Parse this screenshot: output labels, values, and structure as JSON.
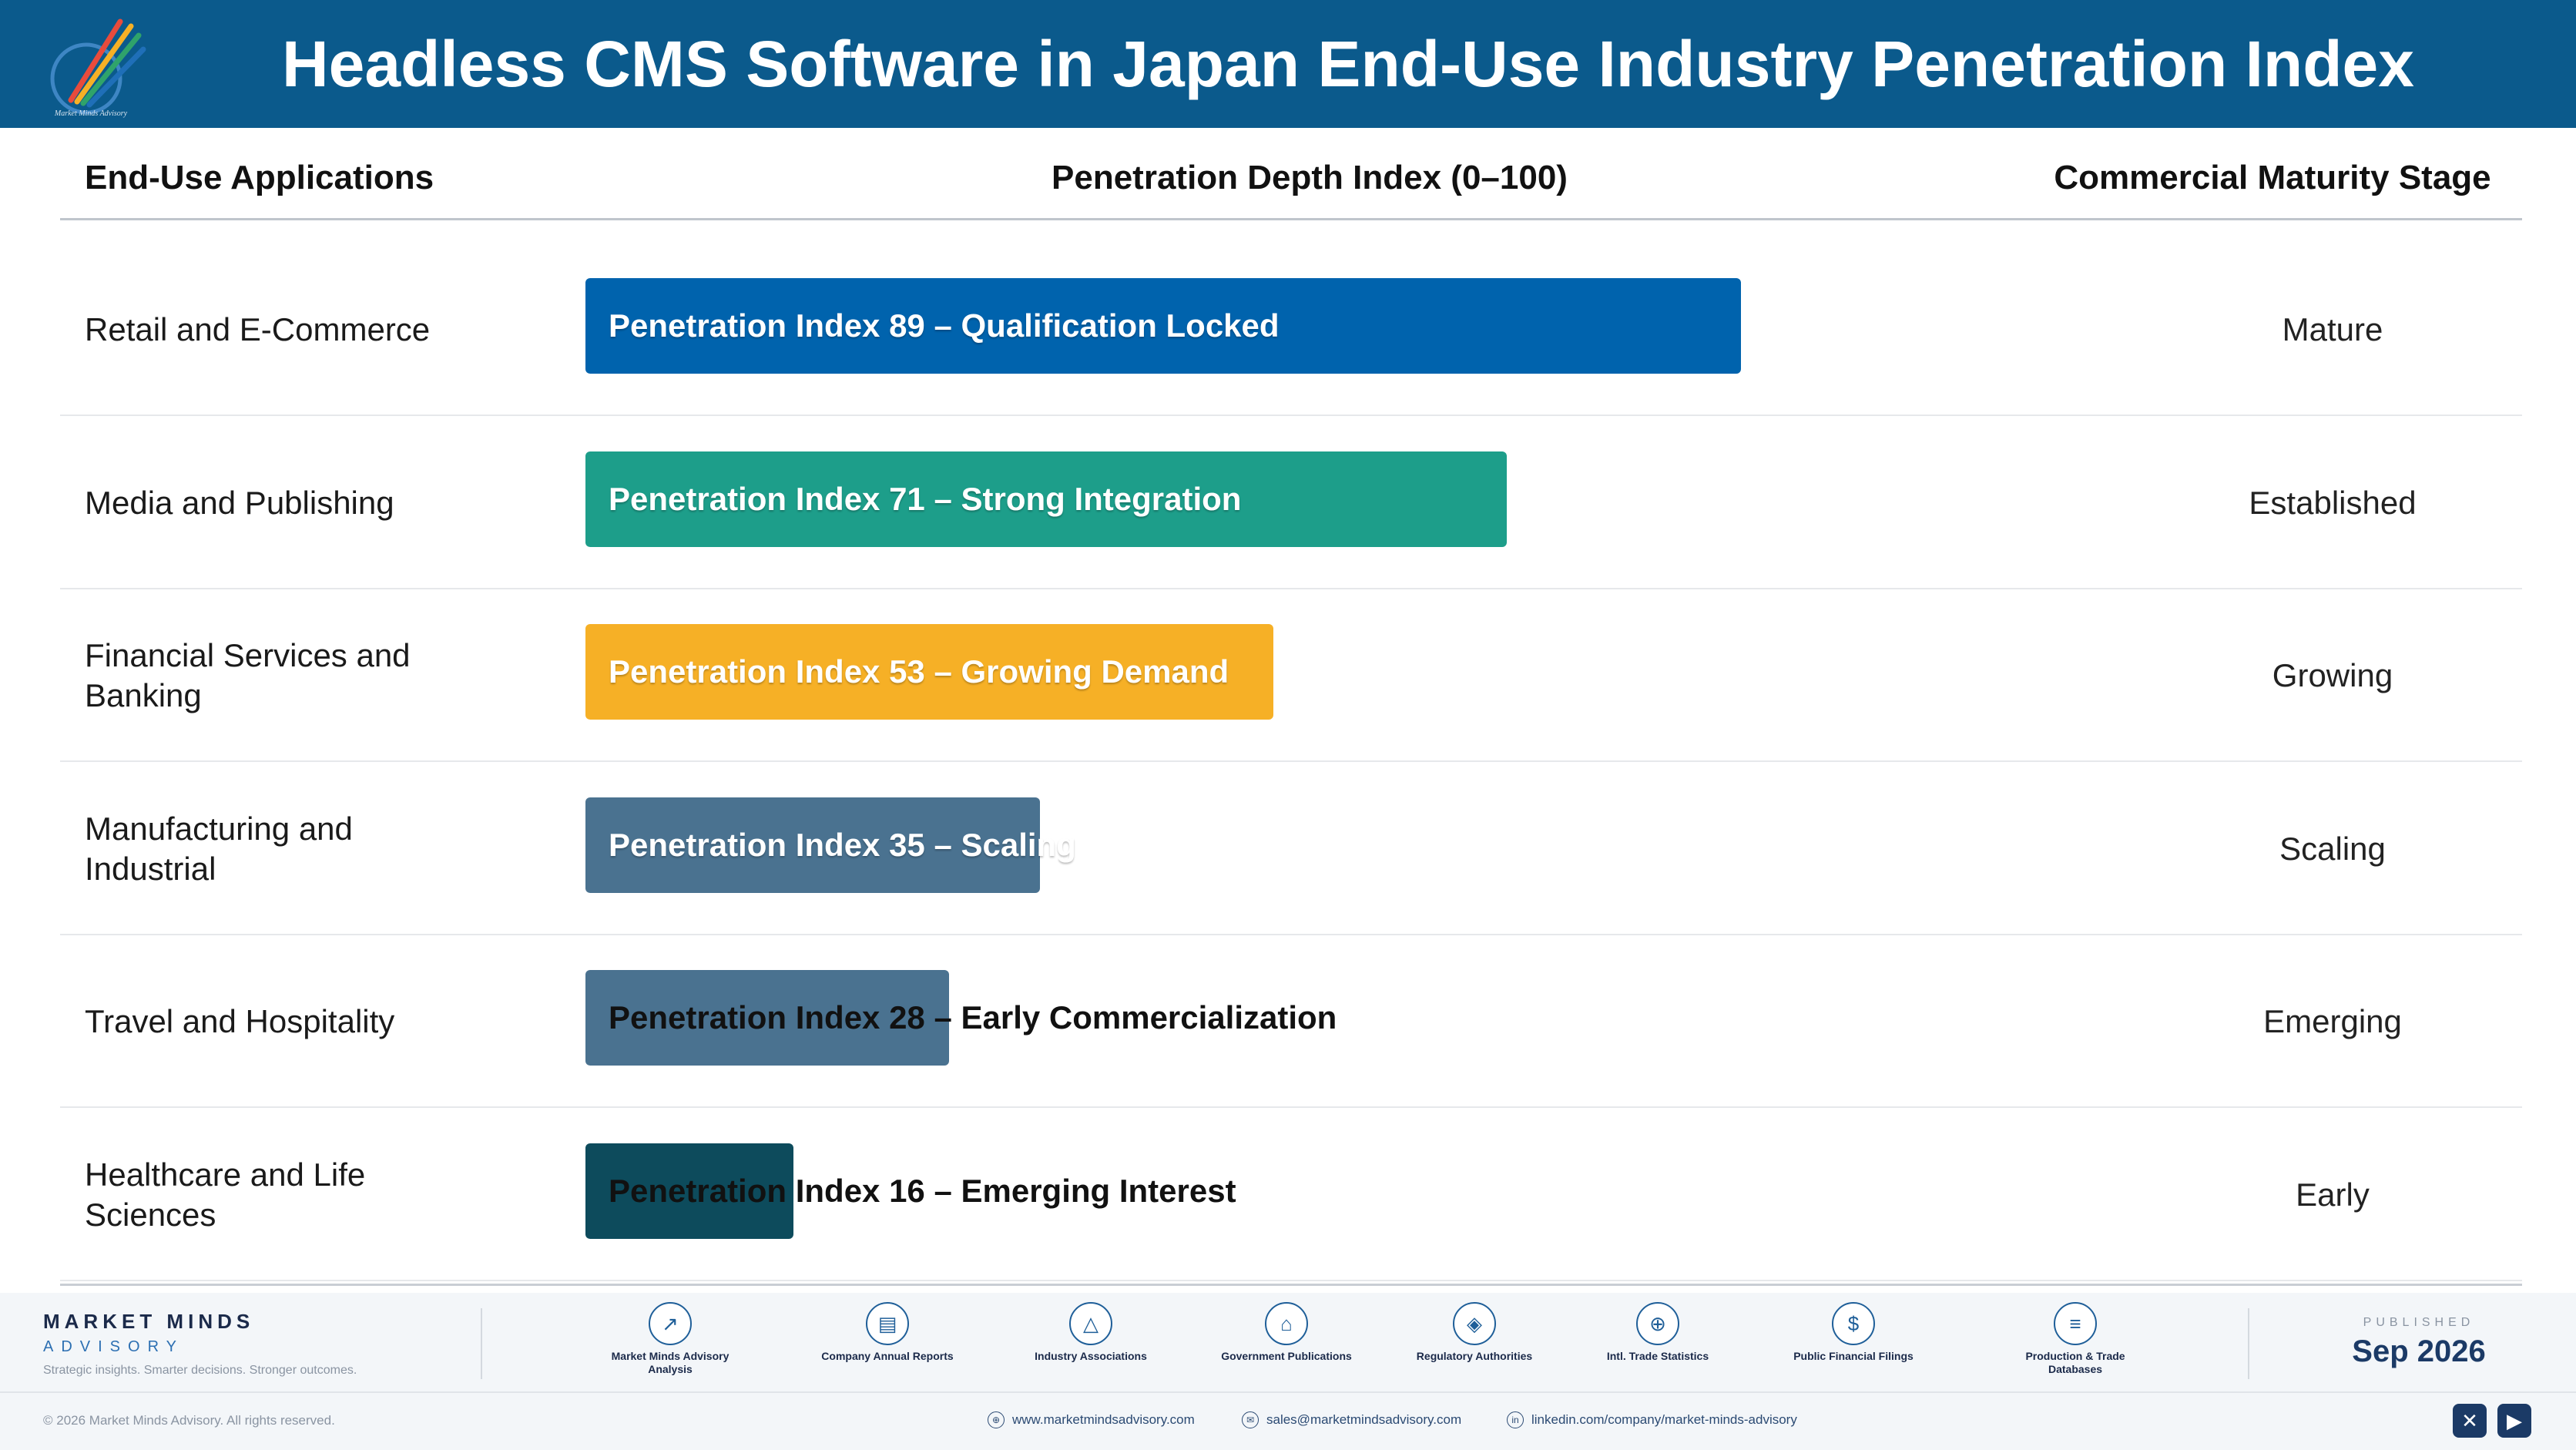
{
  "header": {
    "title": "Headless CMS Software in Japan End-Use Industry Penetration Index",
    "logo_text": "Market Minds Advisory"
  },
  "columns": {
    "applications": "End-Use Applications",
    "index": "Penetration Depth Index (0–100)",
    "stage": "Commercial Maturity Stage"
  },
  "chart_data": {
    "type": "bar",
    "orientation": "horizontal",
    "categories": [
      "Retail and E-Commerce",
      "Media and Publishing",
      "Financial Services and Banking",
      "Manufacturing and Industrial",
      "Travel and Hospitality",
      "Healthcare and Life Sciences"
    ],
    "values": [
      89,
      71,
      53,
      35,
      28,
      16
    ],
    "xlim": [
      0,
      100
    ],
    "rows": [
      {
        "label": "Retail and E-Commerce",
        "value": 89,
        "bar_text": "Penetration Index 89 – Qualification Locked",
        "stage": "Mature",
        "color": "#0063ad",
        "text_style": "light"
      },
      {
        "label": "Media and Publishing",
        "value": 71,
        "bar_text": "Penetration Index 71 – Strong Integration",
        "stage": "Established",
        "color": "#1d9e8a",
        "text_style": "light"
      },
      {
        "label": "Financial Services and Banking",
        "value": 53,
        "bar_text": "Penetration Index 53 – Growing Demand",
        "stage": "Growing",
        "color": "#f6b026",
        "text_style": "light"
      },
      {
        "label": "Manufacturing and Industrial",
        "value": 35,
        "bar_text": "Penetration Index 35 – Scaling",
        "stage": "Scaling",
        "color": "#4a7290",
        "text_style": "light"
      },
      {
        "label": "Travel and Hospitality",
        "value": 28,
        "bar_text": "Penetration Index 28 – Early Commercialization",
        "stage": "Emerging",
        "color": "#4a7290",
        "text_style": "dark"
      },
      {
        "label": "Healthcare and Life Sciences",
        "value": 16,
        "bar_text": "Penetration Index 16 – Emerging Interest",
        "stage": "Early",
        "color": "#0d4b5c",
        "text_style": "dark"
      }
    ]
  },
  "footer": {
    "brand_name": "MARKET MINDS",
    "brand_sub": "ADVISORY",
    "brand_tagline": "Strategic insights. Smarter decisions. Stronger outcomes.",
    "sources": [
      {
        "icon": "chart-line-icon",
        "glyph": "↗",
        "label": "Market Minds Advisory Analysis"
      },
      {
        "icon": "document-icon",
        "glyph": "▤",
        "label": "Company Annual Reports"
      },
      {
        "icon": "network-icon",
        "glyph": "△",
        "label": "Industry Associations"
      },
      {
        "icon": "government-building-icon",
        "glyph": "⌂",
        "label": "Government Publications"
      },
      {
        "icon": "shield-icon",
        "glyph": "◈",
        "label": "Regulatory Authorities"
      },
      {
        "icon": "globe-icon",
        "glyph": "⊕",
        "label": "Intl. Trade Statistics"
      },
      {
        "icon": "dollar-coin-icon",
        "glyph": "$",
        "label": "Public Financial Filings"
      },
      {
        "icon": "database-icon",
        "glyph": "≡",
        "label": "Production & Trade Databases"
      }
    ],
    "published_label": "PUBLISHED",
    "published_date": "Sep 2026",
    "copyright": "© 2026 Market Minds Advisory. All rights reserved.",
    "website": "www.marketmindsadvisory.com",
    "email": "sales@marketmindsadvisory.com",
    "linkedin": "linkedin.com/company/market-minds-advisory"
  }
}
